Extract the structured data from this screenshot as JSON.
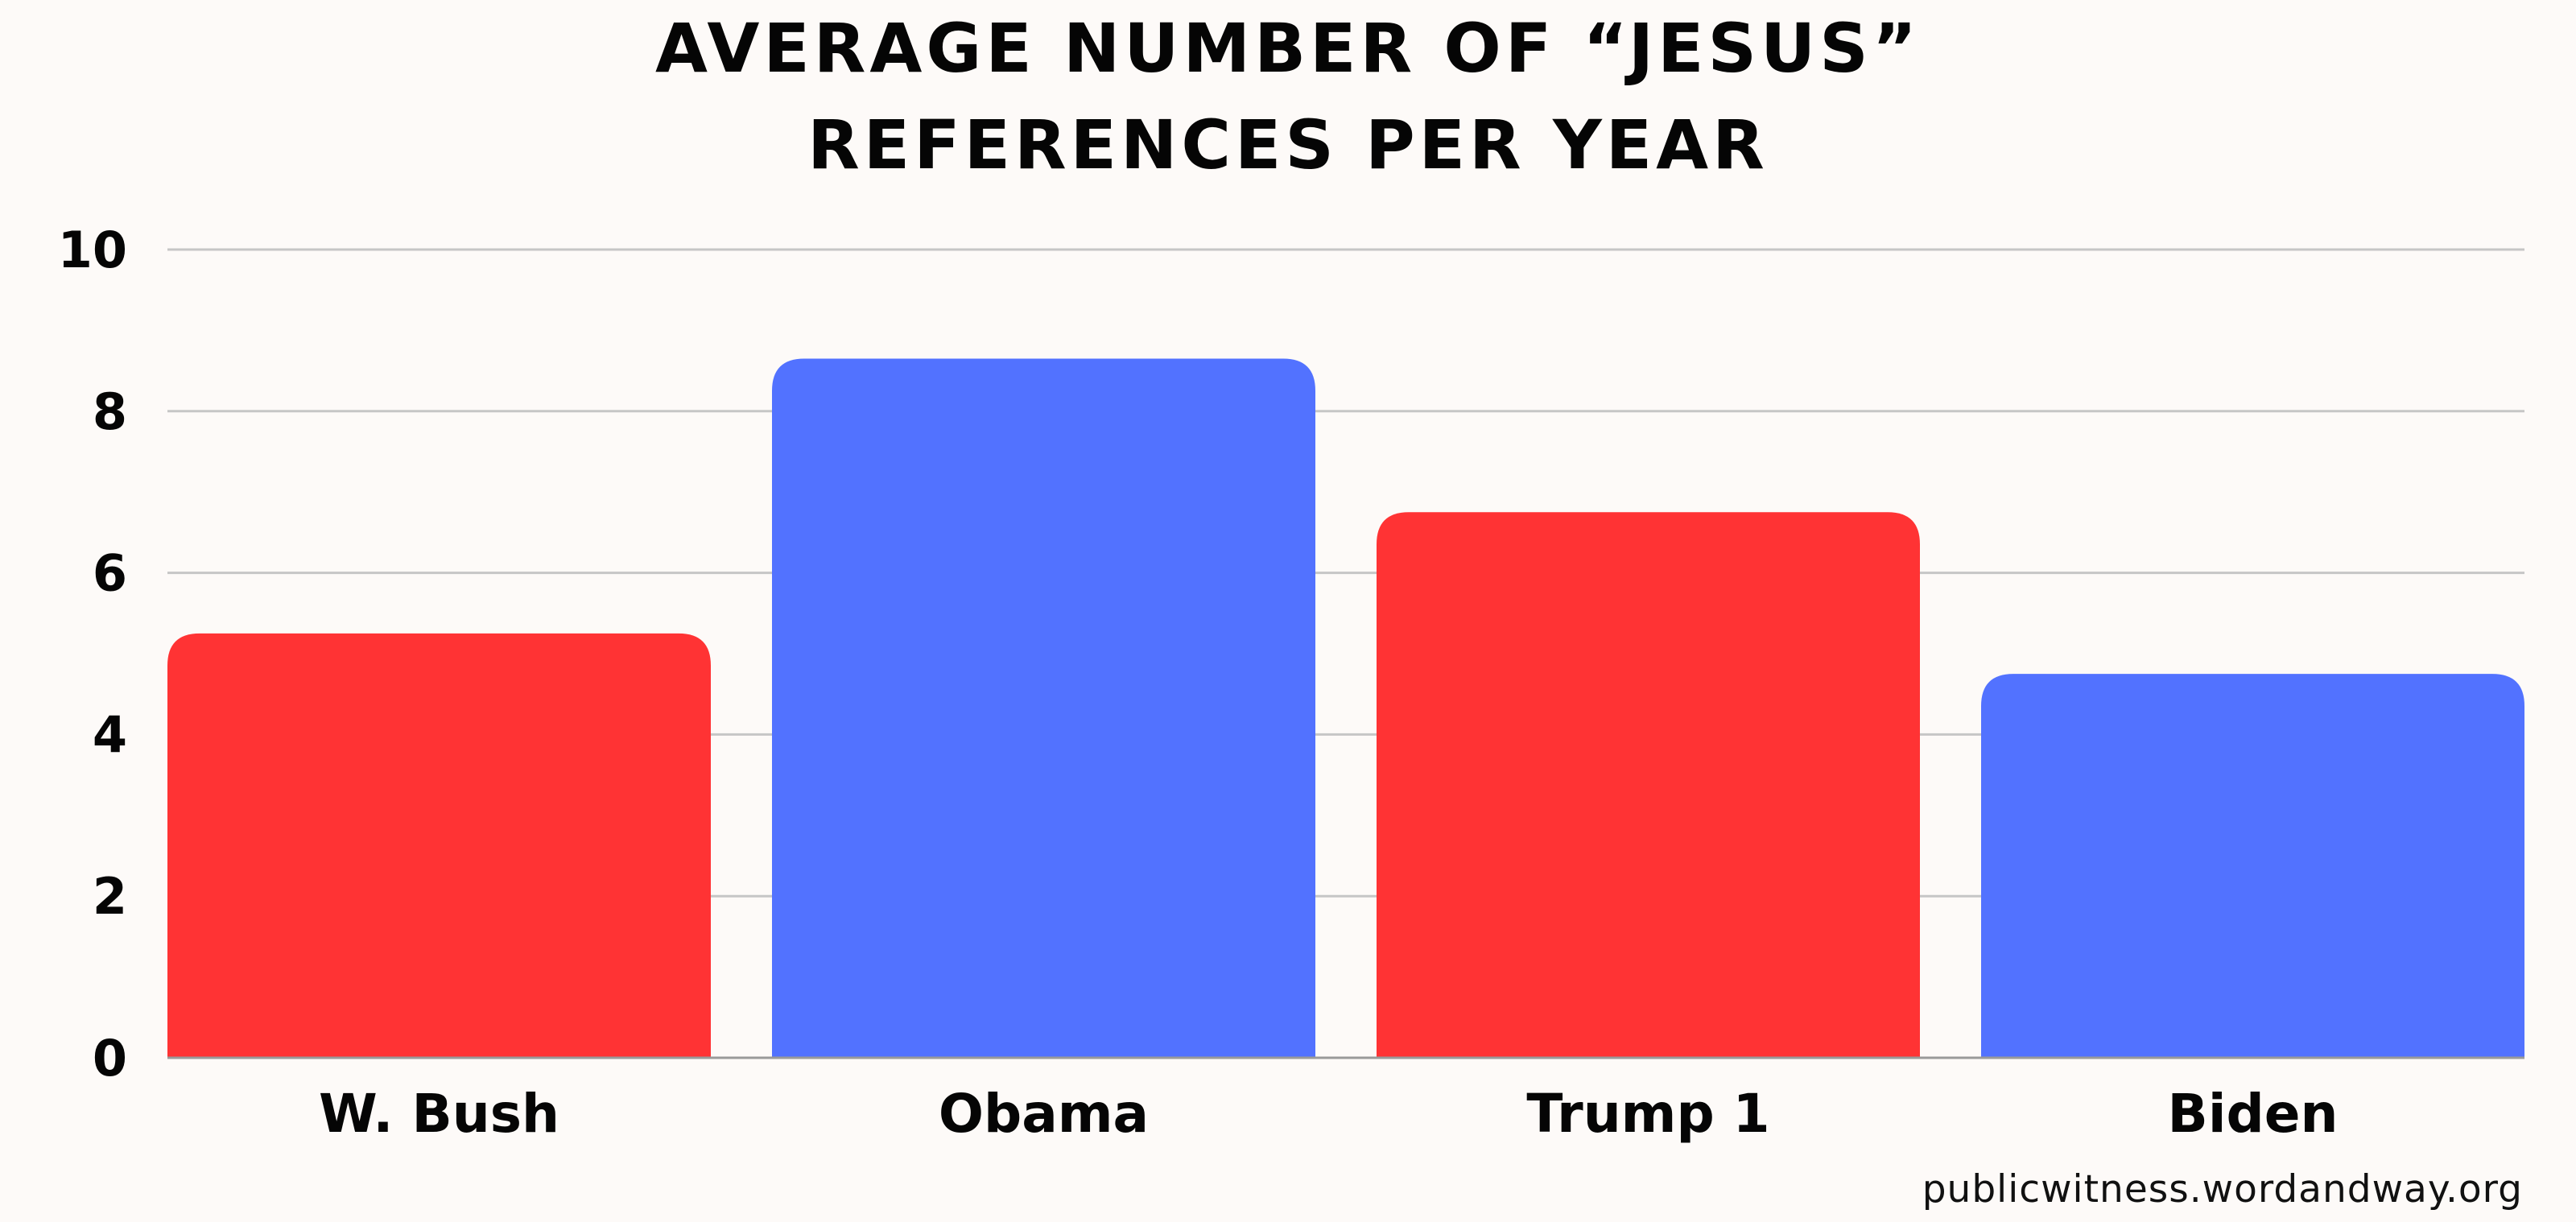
{
  "chart_data": {
    "type": "bar",
    "title_lines": [
      "AVERAGE NUMBER OF “JESUS”",
      "REFERENCES PER YEAR"
    ],
    "categories": [
      "W. Bush",
      "Obama",
      "Trump 1",
      "Biden"
    ],
    "values": [
      5.25,
      8.65,
      6.75,
      4.75
    ],
    "colors": [
      "#ff3334",
      "#5272ff",
      "#ff3334",
      "#5272ff"
    ],
    "ylim": [
      0,
      10
    ],
    "yticks": [
      0,
      2,
      4,
      6,
      8,
      10
    ],
    "grid": true,
    "grid_color": "#c6c6c6",
    "source": "publicwitness.wordandway.org"
  }
}
